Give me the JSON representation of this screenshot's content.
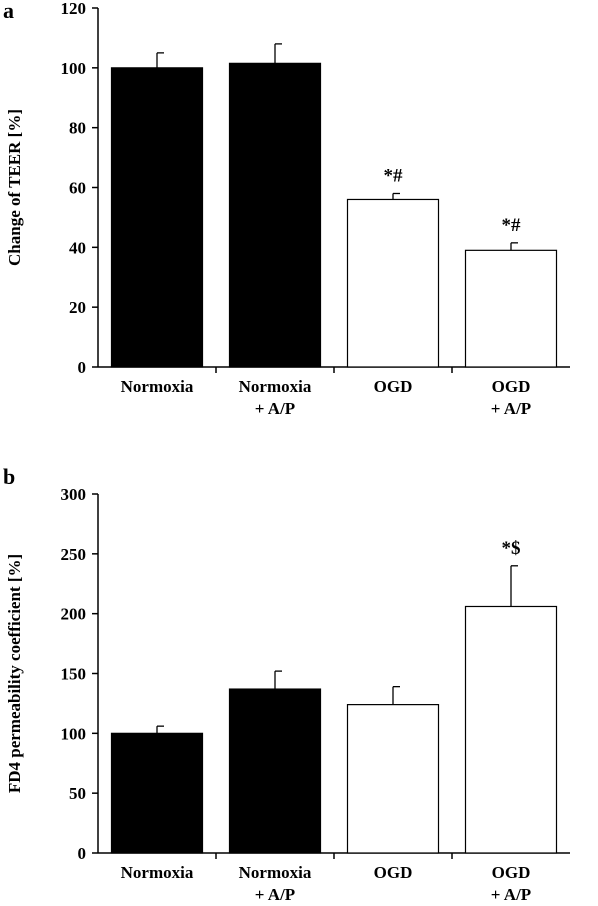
{
  "chart_data": [
    {
      "type": "bar",
      "panel": "a",
      "categories": [
        [
          "Normoxia"
        ],
        [
          "Normoxia",
          "+ A/P"
        ],
        [
          "OGD"
        ],
        [
          "OGD",
          "+ A/P"
        ]
      ],
      "values": [
        100,
        101.5,
        56,
        39
      ],
      "errors": [
        5,
        6.5,
        2,
        2.5
      ],
      "fills": [
        "#000000",
        "#000000",
        "#ffffff",
        "#ffffff"
      ],
      "annotations": [
        "",
        "",
        "*#",
        "*#"
      ],
      "ylabel": "Change of TEER [%]",
      "ylim": [
        0,
        120
      ],
      "yticks": [
        0,
        20,
        40,
        60,
        80,
        100,
        120
      ],
      "grid": false
    },
    {
      "type": "bar",
      "panel": "b",
      "categories": [
        [
          "Normoxia"
        ],
        [
          "Normoxia",
          "+ A/P"
        ],
        [
          "OGD"
        ],
        [
          "OGD",
          "+ A/P"
        ]
      ],
      "values": [
        100,
        137,
        124,
        206
      ],
      "errors": [
        6,
        15,
        15,
        34
      ],
      "fills": [
        "#000000",
        "#000000",
        "#ffffff",
        "#ffffff"
      ],
      "annotations": [
        "",
        "",
        "",
        "*$"
      ],
      "ylabel": "FD4 permeability coefficient [%]",
      "ylim": [
        0,
        300
      ],
      "yticks": [
        0,
        50,
        100,
        150,
        200,
        250,
        300
      ],
      "grid": false
    }
  ]
}
